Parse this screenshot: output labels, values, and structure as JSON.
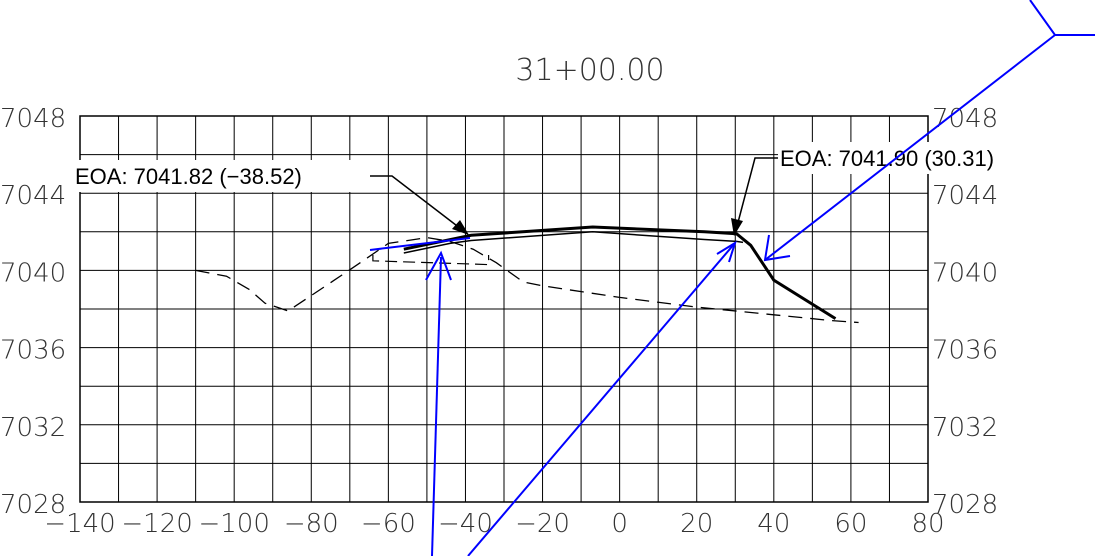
{
  "station": "31+00.00",
  "axes": {
    "x_ticks": [
      "-140",
      "-120",
      "-100",
      "-80",
      "-60",
      "-40",
      "-20",
      "0",
      "20",
      "40",
      "60",
      "80"
    ],
    "y_ticks": [
      "7028",
      "7032",
      "7036",
      "7040",
      "7044",
      "7048"
    ],
    "x_range": [
      -140,
      80
    ],
    "y_range": [
      7028,
      7048
    ],
    "grid_x_step": 10,
    "grid_y_step": 2
  },
  "callouts": {
    "left": "EOA: 7041.82  (−38.52)",
    "right": "EOA: 7041.90  (30.31)",
    "left_point": [
      -38.52,
      7041.82
    ],
    "right_point": [
      30.31,
      7041.9
    ]
  },
  "colors": {
    "grid": "#000000",
    "profile": "#000000",
    "markup": "#0000ff",
    "text": "#333333"
  },
  "chart_data": {
    "type": "line",
    "title": "31+00.00",
    "xlabel": "",
    "ylabel": "",
    "xlim": [
      -140,
      80
    ],
    "ylim": [
      7028,
      7048
    ],
    "grid": true,
    "series": [
      {
        "style": "existing-ground-dashed",
        "x": [
          -110,
          -102,
          -96,
          -92,
          -86,
          -80,
          -74,
          -68,
          -60,
          -50,
          -44,
          -38,
          -32,
          -25,
          -20,
          0,
          20,
          40,
          55,
          62
        ],
        "y": [
          7040.0,
          7039.7,
          7039.0,
          7038.3,
          7037.9,
          7038.7,
          7039.5,
          7040.3,
          7041.4,
          7041.7,
          7041.5,
          7041.1,
          7040.4,
          7039.4,
          7039.2,
          7038.6,
          7038.1,
          7037.7,
          7037.4,
          7037.3
        ]
      },
      {
        "style": "finished-grade-bold",
        "x": [
          -56,
          -38.52,
          -7,
          22,
          30.31,
          34,
          40,
          56
        ],
        "y": [
          7041.1,
          7041.82,
          7042.25,
          7042.0,
          7041.9,
          7041.3,
          7039.5,
          7037.5
        ]
      },
      {
        "style": "subgrade",
        "x": [
          -56,
          -44,
          -38.52,
          -7,
          22,
          30.31,
          32
        ],
        "y": [
          7040.9,
          7041.4,
          7041.55,
          7042.0,
          7041.6,
          7041.5,
          7041.45
        ]
      },
      {
        "style": "dashed-box",
        "x": [
          -64,
          -64,
          -34,
          -34
        ],
        "y": [
          7040.8,
          7040.5,
          7040.3,
          7040.8
        ]
      }
    ]
  }
}
